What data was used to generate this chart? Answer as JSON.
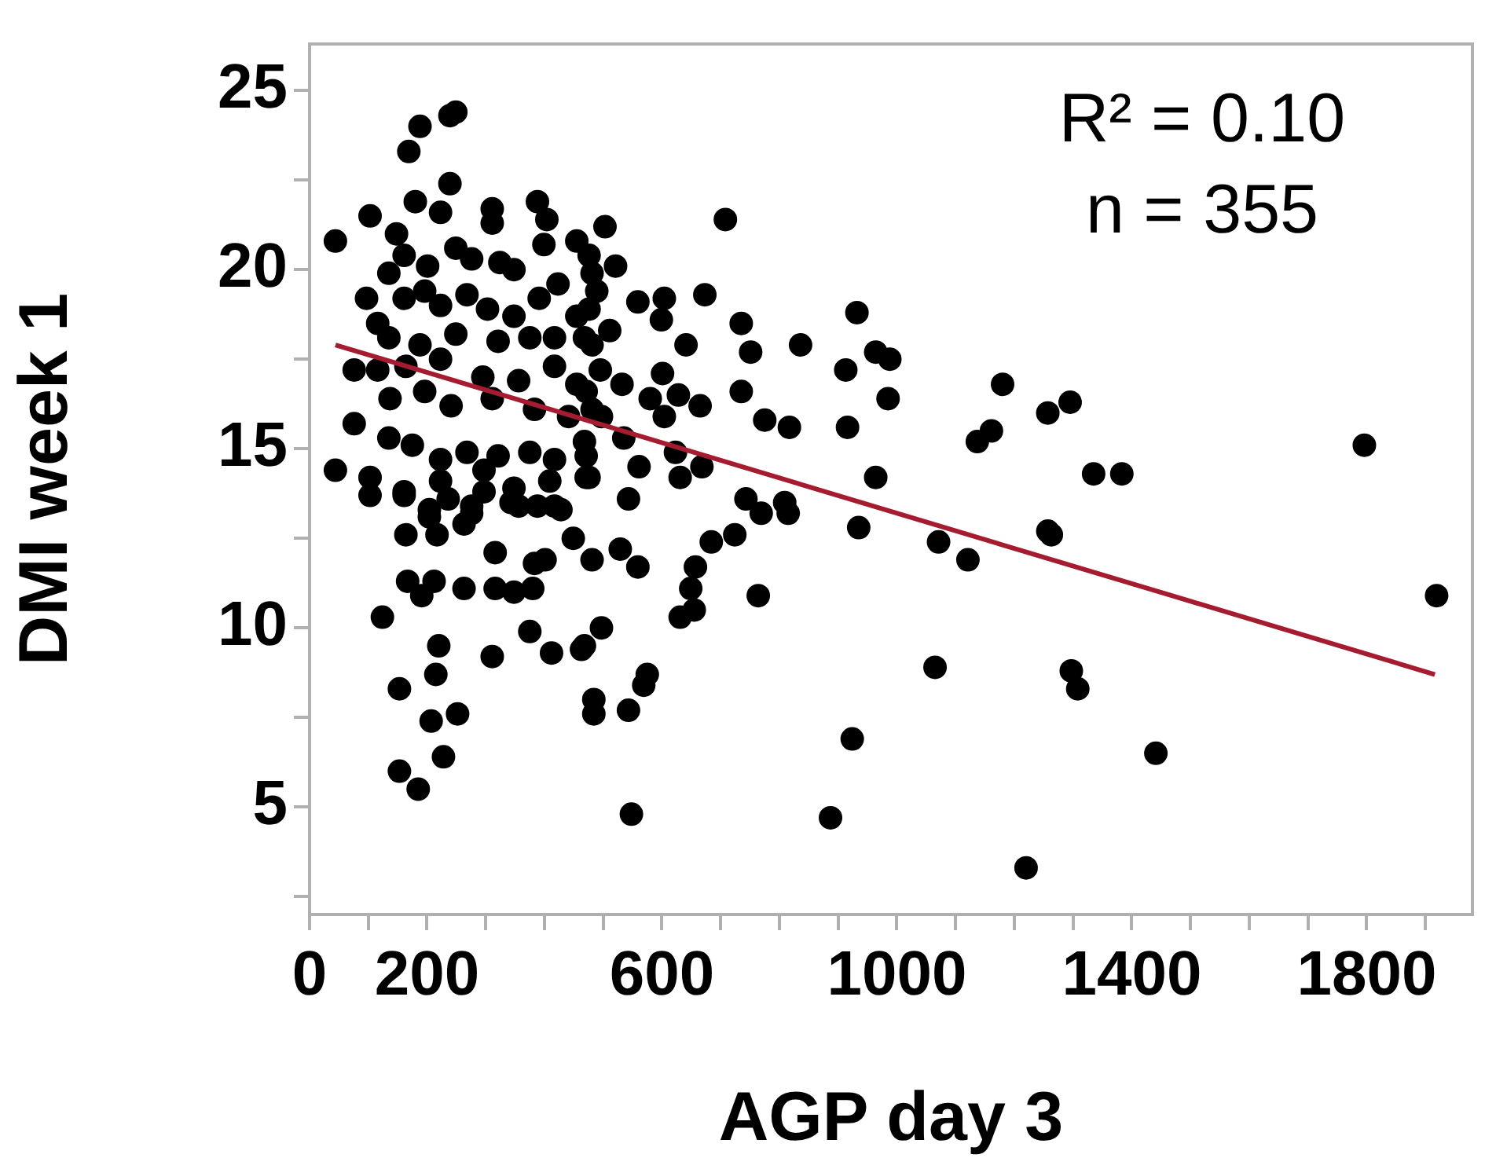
{
  "chart_data": {
    "type": "scatter",
    "xlabel": "AGP day 3",
    "ylabel": "DMI week 1",
    "annotations": [
      "R² = 0.10",
      "n = 355"
    ],
    "xlim": [
      0,
      1980
    ],
    "ylim": [
      2,
      26.3
    ],
    "xticks": [
      0,
      {
        "value": 100,
        "label": null
      },
      200,
      {
        "value": 300,
        "label": null
      },
      {
        "value": 400,
        "label": null
      },
      {
        "value": 500,
        "label": null
      },
      600,
      {
        "value": 700,
        "label": null
      },
      {
        "value": 800,
        "label": null
      },
      {
        "value": 900,
        "label": null
      },
      1000,
      {
        "value": 1100,
        "label": null
      },
      {
        "value": 1200,
        "label": null
      },
      {
        "value": 1300,
        "label": null
      },
      1400,
      {
        "value": 1500,
        "label": null
      },
      {
        "value": 1600,
        "label": null
      },
      {
        "value": 1700,
        "label": null
      },
      1800,
      {
        "value": 1900,
        "label": null
      }
    ],
    "yticks": [
      {
        "value": 2.5,
        "label": null
      },
      5,
      {
        "value": 7.5,
        "label": null
      },
      10,
      {
        "value": 12.5,
        "label": null
      },
      15,
      {
        "value": 17.5,
        "label": null
      },
      20,
      {
        "value": 22.5,
        "label": null
      },
      25
    ],
    "grid": false,
    "legend": false,
    "marker": "circle",
    "series": [
      {
        "color": "#000000",
        "x": [
          503,
          708,
          521,
          559,
          604,
          673,
          599,
          735,
          751,
          641,
          836,
          932,
          964,
          988,
          913,
          985,
          916,
          817,
          775,
          735,
          665,
          628,
          601,
          532,
          580,
          604,
          535,
          623,
          668,
          561,
          543,
          631,
          476,
          743,
          769,
          809,
          815,
          724,
          684,
          935,
          964,
          1071,
          1121,
          1180,
          1161,
          1137,
          1257,
          1257,
          559,
          529,
          481,
          657,
          649,
          631,
          655,
          764,
          497,
          468,
          575,
          569,
          484,
          484,
          543,
          1065,
          924,
          476,
          481,
          489,
          476,
          511,
          481,
          495,
          471,
          497,
          468,
          1295,
          1335,
          1383,
          1263,
          1796,
          1919,
          1297,
          1308,
          1441,
          1220,
          44,
          103,
          169,
          188,
          239,
          249,
          239,
          180,
          223,
          311,
          311,
          388,
          404,
          399,
          455,
          148,
          161,
          135,
          201,
          249,
          276,
          324,
          348,
          97,
          116,
          161,
          196,
          223,
          268,
          303,
          348,
          391,
          423,
          455,
          135,
          188,
          249,
          321,
          375,
          417,
          468,
          76,
          116,
          164,
          223,
          295,
          356,
          417,
          455,
          196,
          241,
          311,
          383,
          441,
          481,
          76,
          137,
          135,
          175,
          223,
          268,
          321,
          375,
          417,
          471,
          44,
          103,
          103,
          161,
          223,
          297,
          348,
          409,
          471,
          204,
          276,
          356,
          417,
          161,
          236,
          297,
          343,
          388,
          428,
          204,
          164,
          217,
          263,
          276,
          316,
          383,
          401,
          449,
          167,
          212,
          191,
          263,
          316,
          348,
          380,
          124,
          220,
          311,
          375,
          412,
          463,
          153,
          215,
          207,
          252,
          228,
          153,
          185,
          548,
          887
        ],
        "values": [
          21.2,
          21.4,
          20.1,
          19.1,
          19.2,
          19.3,
          18.6,
          18.5,
          17.7,
          17.9,
          17.9,
          18.8,
          17.7,
          17.5,
          17.2,
          16.4,
          15.6,
          15.6,
          15.8,
          16.6,
          16.2,
          16.5,
          17.1,
          16.8,
          16.4,
          15.9,
          15.3,
          14.9,
          14.5,
          14.5,
          13.6,
          14.2,
          14.2,
          13.6,
          13.2,
          13.5,
          13.2,
          12.6,
          12.4,
          12.8,
          14.2,
          12.4,
          11.9,
          16.8,
          15.5,
          15.2,
          16.0,
          12.7,
          11.7,
          12.2,
          11.9,
          11.7,
          11.1,
          10.3,
          10.5,
          10.9,
          10.0,
          9.5,
          8.7,
          8.4,
          8.0,
          7.6,
          7.7,
          8.9,
          6.9,
          20.4,
          19.9,
          19.4,
          18.9,
          18.3,
          17.9,
          17.2,
          16.6,
          15.9,
          15.2,
          16.3,
          14.3,
          14.3,
          12.6,
          15.1,
          10.9,
          8.8,
          8.3,
          6.5,
          3.3,
          20.8,
          21.5,
          23.3,
          24.0,
          24.3,
          24.4,
          22.4,
          21.9,
          21.6,
          21.7,
          21.3,
          21.9,
          21.4,
          20.7,
          20.8,
          21.0,
          20.4,
          19.9,
          20.1,
          20.6,
          20.3,
          20.2,
          20.0,
          19.2,
          18.5,
          19.2,
          19.4,
          19.0,
          19.3,
          18.9,
          18.7,
          19.2,
          19.6,
          18.7,
          18.1,
          17.9,
          18.2,
          18.0,
          18.1,
          18.1,
          18.1,
          17.2,
          17.2,
          17.3,
          17.5,
          17.0,
          16.9,
          17.3,
          16.8,
          16.6,
          16.2,
          16.4,
          16.1,
          15.9,
          16.1,
          15.7,
          16.4,
          15.3,
          15.1,
          14.7,
          14.9,
          14.8,
          14.9,
          14.7,
          14.8,
          14.4,
          14.2,
          13.7,
          13.8,
          14.1,
          14.4,
          13.9,
          14.1,
          14.2,
          13.3,
          13.4,
          13.4,
          13.4,
          13.7,
          13.6,
          13.8,
          13.5,
          13.4,
          13.3,
          13.1,
          12.6,
          12.6,
          12.9,
          13.2,
          12.1,
          11.8,
          11.9,
          12.5,
          11.3,
          11.3,
          10.9,
          11.1,
          11.1,
          11.0,
          11.1,
          10.3,
          9.5,
          9.2,
          9.9,
          9.3,
          9.4,
          8.3,
          8.7,
          7.4,
          7.6,
          6.4,
          6.0,
          5.5,
          4.8,
          4.7
        ]
      },
      {
        "type": "line",
        "color": "#a51c30",
        "marker": "none",
        "line_style": "solid",
        "x": [
          44,
          1916
        ],
        "values": [
          17.9,
          8.7
        ]
      }
    ]
  }
}
